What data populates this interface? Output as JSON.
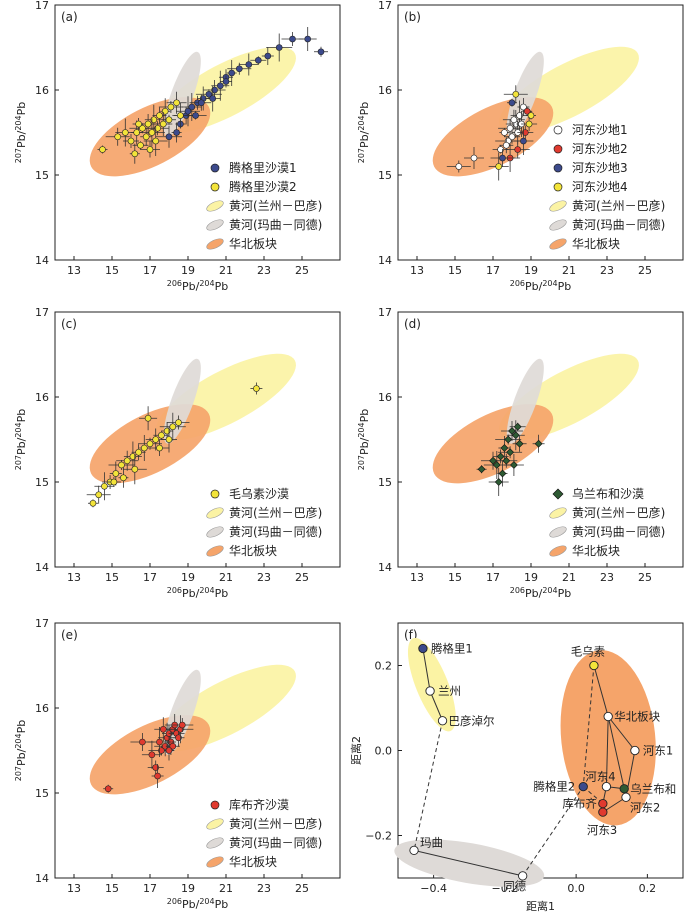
{
  "colors": {
    "lanzhou_fill": "#fbf3a4",
    "maqu_fill": "#dedad7",
    "ncc_fill": "#f5a46a",
    "tengger": "#3c4a8c",
    "yellow": "#f3e43a",
    "red": "#e03a2f",
    "green": "#2e5a33",
    "white": "#ffffff",
    "errbar": "#333333"
  },
  "chart_data": [
    {
      "panel": "(a)",
      "type": "scatter",
      "xlabel": {
        "sup": "206",
        "base": "Pb/",
        "sup2": "204",
        "base2": "Pb"
      },
      "ylabel": {
        "sup": "207",
        "base": "Pb/",
        "sup2": "204",
        "base2": "Pb"
      },
      "xlim": [
        12,
        27
      ],
      "ylim": [
        14,
        17
      ],
      "xticks": [
        13,
        15,
        17,
        19,
        21,
        23,
        25
      ],
      "yticks": [
        14,
        15,
        16,
        17
      ],
      "legend": [
        {
          "kind": "dot",
          "color": "tengger",
          "label": "腾格里沙漠1"
        },
        {
          "kind": "dot",
          "color": "yellow",
          "label": "腾格里沙漠2"
        },
        {
          "kind": "ell",
          "color": "lanzhou_fill",
          "label": "黄河(兰州－巴彦)"
        },
        {
          "kind": "ell",
          "color": "maqu_fill",
          "label": "黄河(玛曲－同德)"
        },
        {
          "kind": "ell",
          "color": "ncc_fill",
          "label": "华北板块"
        }
      ],
      "series": [
        {
          "color": "tengger",
          "points": [
            [
              18.6,
              15.6
            ],
            [
              18.9,
              15.7
            ],
            [
              19.2,
              15.8
            ],
            [
              19.5,
              15.85
            ],
            [
              19.8,
              15.9
            ],
            [
              20.1,
              15.95
            ],
            [
              20.4,
              16.0
            ],
            [
              20.7,
              16.05
            ],
            [
              21.0,
              16.15
            ],
            [
              21.3,
              16.2
            ],
            [
              21.7,
              16.25
            ],
            [
              22.2,
              16.3
            ],
            [
              22.7,
              16.35
            ],
            [
              23.2,
              16.4
            ],
            [
              23.8,
              16.5
            ],
            [
              24.5,
              16.6
            ],
            [
              25.3,
              16.6
            ],
            [
              26.0,
              16.45
            ],
            [
              18.4,
              15.5
            ],
            [
              19.0,
              15.75
            ],
            [
              19.7,
              15.85
            ],
            [
              20.3,
              15.9
            ],
            [
              21.0,
              16.1
            ],
            [
              18.0,
              15.45
            ],
            [
              19.4,
              15.7
            ]
          ]
        },
        {
          "color": "yellow",
          "points": [
            [
              14.5,
              15.3
            ],
            [
              15.3,
              15.45
            ],
            [
              15.7,
              15.5
            ],
            [
              16.0,
              15.4
            ],
            [
              16.3,
              15.5
            ],
            [
              16.6,
              15.55
            ],
            [
              16.9,
              15.6
            ],
            [
              17.2,
              15.65
            ],
            [
              17.5,
              15.7
            ],
            [
              17.8,
              15.75
            ],
            [
              18.1,
              15.8
            ],
            [
              18.4,
              15.85
            ],
            [
              16.5,
              15.35
            ],
            [
              16.8,
              15.45
            ],
            [
              17.1,
              15.5
            ],
            [
              17.4,
              15.55
            ],
            [
              17.7,
              15.6
            ],
            [
              18.0,
              15.65
            ],
            [
              16.2,
              15.25
            ],
            [
              17.3,
              15.4
            ],
            [
              17.0,
              15.3
            ],
            [
              18.6,
              15.7
            ],
            [
              16.4,
              15.6
            ]
          ]
        }
      ],
      "ellipses": [
        "lanzhou",
        "maqu",
        "ncc"
      ]
    },
    {
      "panel": "(b)",
      "type": "scatter",
      "xlabel": {
        "sup": "206",
        "base": "Pb/",
        "sup2": "204",
        "base2": "Pb"
      },
      "ylabel": {
        "sup": "207",
        "base": "Pb/",
        "sup2": "204",
        "base2": "Pb"
      },
      "xlim": [
        12,
        27
      ],
      "ylim": [
        14,
        17
      ],
      "xticks": [
        13,
        15,
        17,
        19,
        21,
        23,
        25
      ],
      "yticks": [
        14,
        15,
        16,
        17
      ],
      "legend": [
        {
          "kind": "dot",
          "color": "white",
          "label": "河东沙地1"
        },
        {
          "kind": "dot",
          "color": "red",
          "label": "河东沙地2"
        },
        {
          "kind": "dot",
          "color": "tengger",
          "label": "河东沙地3"
        },
        {
          "kind": "dot",
          "color": "yellow",
          "label": "河东沙地4"
        },
        {
          "kind": "ell",
          "color": "lanzhou_fill",
          "label": "黄河(兰州－巴彦)"
        },
        {
          "kind": "ell",
          "color": "maqu_fill",
          "label": "黄河(玛曲－同德)"
        },
        {
          "kind": "ell",
          "color": "ncc_fill",
          "label": "华北板块"
        }
      ],
      "series": [
        {
          "color": "white",
          "points": [
            [
              17.6,
              15.5
            ],
            [
              17.9,
              15.55
            ],
            [
              18.2,
              15.6
            ],
            [
              18.0,
              15.45
            ],
            [
              18.3,
              15.5
            ],
            [
              17.8,
              15.4
            ],
            [
              18.1,
              15.65
            ],
            [
              18.4,
              15.7
            ],
            [
              17.7,
              15.35
            ],
            [
              18.5,
              15.6
            ],
            [
              15.2,
              15.1
            ],
            [
              16.0,
              15.2
            ],
            [
              17.4,
              15.3
            ],
            [
              18.6,
              15.8
            ]
          ]
        },
        {
          "color": "red",
          "points": [
            [
              18.8,
              15.75
            ],
            [
              18.3,
              15.3
            ],
            [
              17.9,
              15.2
            ],
            [
              18.7,
              15.5
            ]
          ]
        },
        {
          "color": "tengger",
          "points": [
            [
              18.0,
              15.85
            ],
            [
              17.5,
              15.2
            ],
            [
              18.6,
              15.4
            ]
          ]
        },
        {
          "color": "yellow",
          "points": [
            [
              19.0,
              15.7
            ],
            [
              18.2,
              15.95
            ],
            [
              17.3,
              15.1
            ],
            [
              18.9,
              15.6
            ]
          ]
        }
      ],
      "ellipses": [
        "lanzhou",
        "maqu",
        "ncc"
      ]
    },
    {
      "panel": "(c)",
      "type": "scatter",
      "xlabel": {
        "sup": "206",
        "base": "Pb/",
        "sup2": "204",
        "base2": "Pb"
      },
      "ylabel": {
        "sup": "207",
        "base": "Pb/",
        "sup2": "204",
        "base2": "Pb"
      },
      "xlim": [
        12,
        27
      ],
      "ylim": [
        14,
        17
      ],
      "xticks": [
        13,
        15,
        17,
        19,
        21,
        23,
        25
      ],
      "yticks": [
        14,
        15,
        16,
        17
      ],
      "legend": [
        {
          "kind": "dot",
          "color": "yellow",
          "label": "毛乌素沙漠"
        },
        {
          "kind": "ell",
          "color": "lanzhou_fill",
          "label": "黄河(兰州－巴彦)"
        },
        {
          "kind": "ell",
          "color": "maqu_fill",
          "label": "黄河(玛曲－同德)"
        },
        {
          "kind": "ell",
          "color": "ncc_fill",
          "label": "华北板块"
        }
      ],
      "series": [
        {
          "color": "yellow",
          "points": [
            [
              14.0,
              14.75
            ],
            [
              14.3,
              14.85
            ],
            [
              14.6,
              14.95
            ],
            [
              14.9,
              15.0
            ],
            [
              15.2,
              15.1
            ],
            [
              15.5,
              15.2
            ],
            [
              15.8,
              15.25
            ],
            [
              16.1,
              15.3
            ],
            [
              16.4,
              15.35
            ],
            [
              16.7,
              15.4
            ],
            [
              17.0,
              15.45
            ],
            [
              17.3,
              15.5
            ],
            [
              17.6,
              15.55
            ],
            [
              17.9,
              15.6
            ],
            [
              18.2,
              15.65
            ],
            [
              18.5,
              15.7
            ],
            [
              16.9,
              15.75
            ],
            [
              15.1,
              15.0
            ],
            [
              15.6,
              15.05
            ],
            [
              16.2,
              15.15
            ],
            [
              17.5,
              15.4
            ],
            [
              18.0,
              15.5
            ],
            [
              22.6,
              16.1
            ]
          ]
        }
      ],
      "ellipses": [
        "lanzhou",
        "maqu",
        "ncc"
      ]
    },
    {
      "panel": "(d)",
      "type": "scatter",
      "xlabel": {
        "sup": "206",
        "base": "Pb/",
        "sup2": "204",
        "base2": "Pb"
      },
      "ylabel": {
        "sup": "207",
        "base": "Pb/",
        "sup2": "204",
        "base2": "Pb"
      },
      "xlim": [
        12,
        27
      ],
      "ylim": [
        14,
        17
      ],
      "xticks": [
        13,
        15,
        17,
        19,
        21,
        23,
        25
      ],
      "yticks": [
        14,
        15,
        16,
        17
      ],
      "legend": [
        {
          "kind": "dia",
          "color": "green",
          "label": "乌兰布和沙漠"
        },
        {
          "kind": "ell",
          "color": "lanzhou_fill",
          "label": "黄河(兰州－巴彦)"
        },
        {
          "kind": "ell",
          "color": "maqu_fill",
          "label": "黄河(玛曲－同德)"
        },
        {
          "kind": "ell",
          "color": "ncc_fill",
          "label": "华北板块"
        }
      ],
      "series": [
        {
          "color": "green",
          "marker": "dia",
          "points": [
            [
              16.4,
              15.15
            ],
            [
              17.0,
              15.25
            ],
            [
              17.3,
              15.0
            ],
            [
              17.4,
              15.3
            ],
            [
              17.6,
              15.4
            ],
            [
              17.8,
              15.5
            ],
            [
              18.0,
              15.6
            ],
            [
              18.2,
              15.55
            ],
            [
              18.4,
              15.45
            ],
            [
              17.5,
              15.1
            ],
            [
              17.9,
              15.35
            ],
            [
              18.1,
              15.2
            ],
            [
              18.3,
              15.65
            ],
            [
              19.4,
              15.45
            ],
            [
              17.2,
              15.2
            ],
            [
              17.7,
              15.25
            ]
          ]
        }
      ],
      "ellipses": [
        "lanzhou",
        "maqu",
        "ncc"
      ]
    },
    {
      "panel": "(e)",
      "type": "scatter",
      "xlabel": {
        "sup": "206",
        "base": "Pb/",
        "sup2": "204",
        "base2": "Pb"
      },
      "ylabel": {
        "sup": "207",
        "base": "Pb/",
        "sup2": "204",
        "base2": "Pb"
      },
      "xlim": [
        12,
        27
      ],
      "ylim": [
        14,
        17
      ],
      "xticks": [
        13,
        15,
        17,
        19,
        21,
        23,
        25
      ],
      "yticks": [
        14,
        15,
        16,
        17
      ],
      "legend": [
        {
          "kind": "dot",
          "color": "red",
          "label": "库布齐沙漠"
        },
        {
          "kind": "ell",
          "color": "lanzhou_fill",
          "label": "黄河(兰州－巴彦)"
        },
        {
          "kind": "ell",
          "color": "maqu_fill",
          "label": "黄河(玛曲－同德)"
        },
        {
          "kind": "ell",
          "color": "ncc_fill",
          "label": "华北板块"
        }
      ],
      "series": [
        {
          "color": "red",
          "points": [
            [
              14.8,
              15.05
            ],
            [
              16.6,
              15.6
            ],
            [
              17.1,
              15.45
            ],
            [
              17.3,
              15.3
            ],
            [
              17.4,
              15.2
            ],
            [
              17.6,
              15.5
            ],
            [
              17.8,
              15.55
            ],
            [
              17.9,
              15.65
            ],
            [
              18.0,
              15.7
            ],
            [
              18.1,
              15.6
            ],
            [
              18.2,
              15.75
            ],
            [
              18.3,
              15.8
            ],
            [
              18.4,
              15.7
            ],
            [
              18.5,
              15.65
            ],
            [
              18.6,
              15.75
            ],
            [
              18.7,
              15.8
            ],
            [
              17.7,
              15.75
            ],
            [
              18.2,
              15.55
            ],
            [
              18.0,
              15.5
            ],
            [
              17.5,
              15.6
            ]
          ]
        }
      ],
      "ellipses": [
        "lanzhou",
        "maqu",
        "ncc"
      ]
    },
    {
      "panel": "(f)",
      "type": "scatter",
      "xlabel": "距离1",
      "ylabel": "距离2",
      "xlim": [
        -0.5,
        0.3
      ],
      "ylim": [
        -0.3,
        0.3
      ],
      "xticks": [
        -0.4,
        -0.2,
        0.0,
        0.2
      ],
      "xtick_labels": [
        "−0.4",
        "−0.2",
        "0.0",
        "0.2"
      ],
      "yticks": [
        -0.2,
        0.0,
        0.2
      ],
      "ytick_labels": [
        "−0.2",
        "0.0",
        "0.2"
      ],
      "nodes": [
        {
          "id": "tengger1",
          "label": "腾格里1",
          "x": -0.43,
          "y": 0.24,
          "color": "tengger"
        },
        {
          "id": "lanzhou",
          "label": "兰州",
          "x": -0.41,
          "y": 0.14,
          "color": "white"
        },
        {
          "id": "bayan",
          "label": "巴彦淖尔",
          "x": -0.375,
          "y": 0.07,
          "color": "white"
        },
        {
          "id": "maqu",
          "label": "玛曲",
          "x": -0.455,
          "y": -0.235,
          "color": "white"
        },
        {
          "id": "tongde",
          "label": "同德",
          "x": -0.15,
          "y": -0.295,
          "color": "white"
        },
        {
          "id": "mawusu",
          "label": "毛乌素",
          "x": 0.05,
          "y": 0.2,
          "color": "yellow"
        },
        {
          "id": "ncc",
          "label": "华北板块",
          "x": 0.09,
          "y": 0.08,
          "color": "white"
        },
        {
          "id": "hedong1",
          "label": "河东1",
          "x": 0.165,
          "y": 0.0,
          "color": "white"
        },
        {
          "id": "tengger2",
          "label": "腾格里2",
          "x": 0.02,
          "y": -0.085,
          "color": "tengger"
        },
        {
          "id": "hedong4",
          "label": "河东4",
          "x": 0.085,
          "y": -0.085,
          "color": "white"
        },
        {
          "id": "wulanbuhe",
          "label": "乌兰布和",
          "x": 0.135,
          "y": -0.09,
          "color": "green"
        },
        {
          "id": "kubuqi",
          "label": "库布齐",
          "x": 0.075,
          "y": -0.125,
          "color": "red"
        },
        {
          "id": "hedong2",
          "label": "河东2",
          "x": 0.14,
          "y": -0.11,
          "color": "white"
        },
        {
          "id": "hedong3",
          "label": "河东3",
          "x": 0.075,
          "y": -0.145,
          "color": "red"
        }
      ]
    }
  ]
}
